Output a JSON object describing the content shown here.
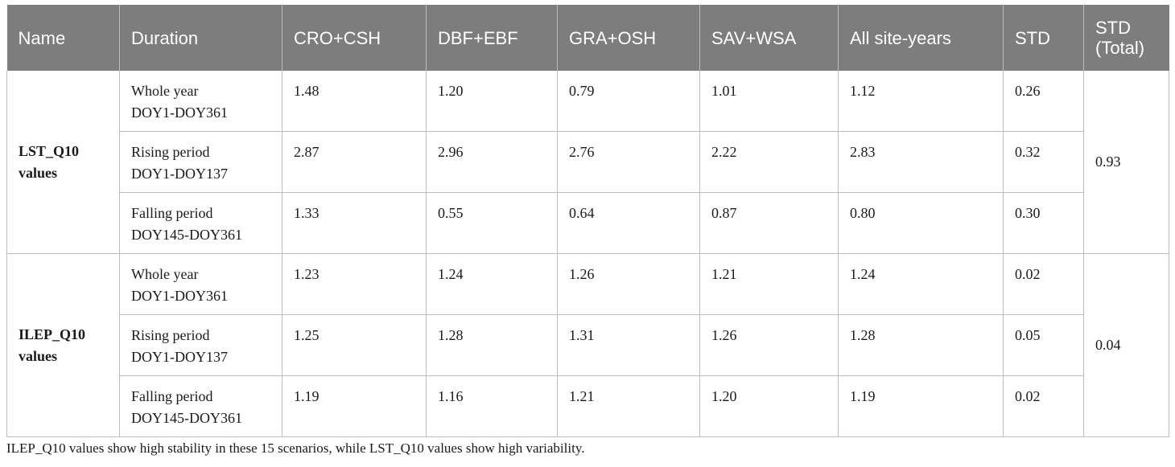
{
  "headers": {
    "name": "Name",
    "duration": "Duration",
    "cro_csh": "CRO+CSH",
    "dbf_ebf": "DBF+EBF",
    "gra_osh": "GRA+OSH",
    "sav_wsa": "SAV+WSA",
    "all": "All site-years",
    "std": "STD",
    "std_total_1": "STD",
    "std_total_2": "(Total)"
  },
  "groups": [
    {
      "name_1": "LST_Q10",
      "name_2": "values",
      "std_total": "0.93",
      "rows": [
        {
          "dur_1": "Whole year",
          "dur_2": "DOY1-DOY361",
          "cro_csh": "1.48",
          "dbf_ebf": "1.20",
          "gra_osh": "0.79",
          "sav_wsa": "1.01",
          "all": "1.12",
          "std": "0.26"
        },
        {
          "dur_1": "Rising period",
          "dur_2": "DOY1-DOY137",
          "cro_csh": "2.87",
          "dbf_ebf": "2.96",
          "gra_osh": "2.76",
          "sav_wsa": "2.22",
          "all": "2.83",
          "std": "0.32"
        },
        {
          "dur_1": "Falling period",
          "dur_2": "DOY145-DOY361",
          "cro_csh": "1.33",
          "dbf_ebf": "0.55",
          "gra_osh": "0.64",
          "sav_wsa": "0.87",
          "all": "0.80",
          "std": "0.30"
        }
      ]
    },
    {
      "name_1": "ILEP_Q10",
      "name_2": "values",
      "std_total": "0.04",
      "rows": [
        {
          "dur_1": "Whole year",
          "dur_2": "DOY1-DOY361",
          "cro_csh": "1.23",
          "dbf_ebf": "1.24",
          "gra_osh": "1.26",
          "sav_wsa": "1.21",
          "all": "1.24",
          "std": "0.02"
        },
        {
          "dur_1": "Rising period",
          "dur_2": "DOY1-DOY137",
          "cro_csh": "1.25",
          "dbf_ebf": "1.28",
          "gra_osh": "1.31",
          "sav_wsa": "1.26",
          "all": "1.28",
          "std": "0.05"
        },
        {
          "dur_1": "Falling period",
          "dur_2": "DOY145-DOY361",
          "cro_csh": "1.19",
          "dbf_ebf": "1.16",
          "gra_osh": "1.21",
          "sav_wsa": "1.20",
          "all": "1.19",
          "std": "0.02"
        }
      ]
    }
  ],
  "caption": "ILEP_Q10 values show high stability in these 15 scenarios, while LST_Q10 values show high variability."
}
